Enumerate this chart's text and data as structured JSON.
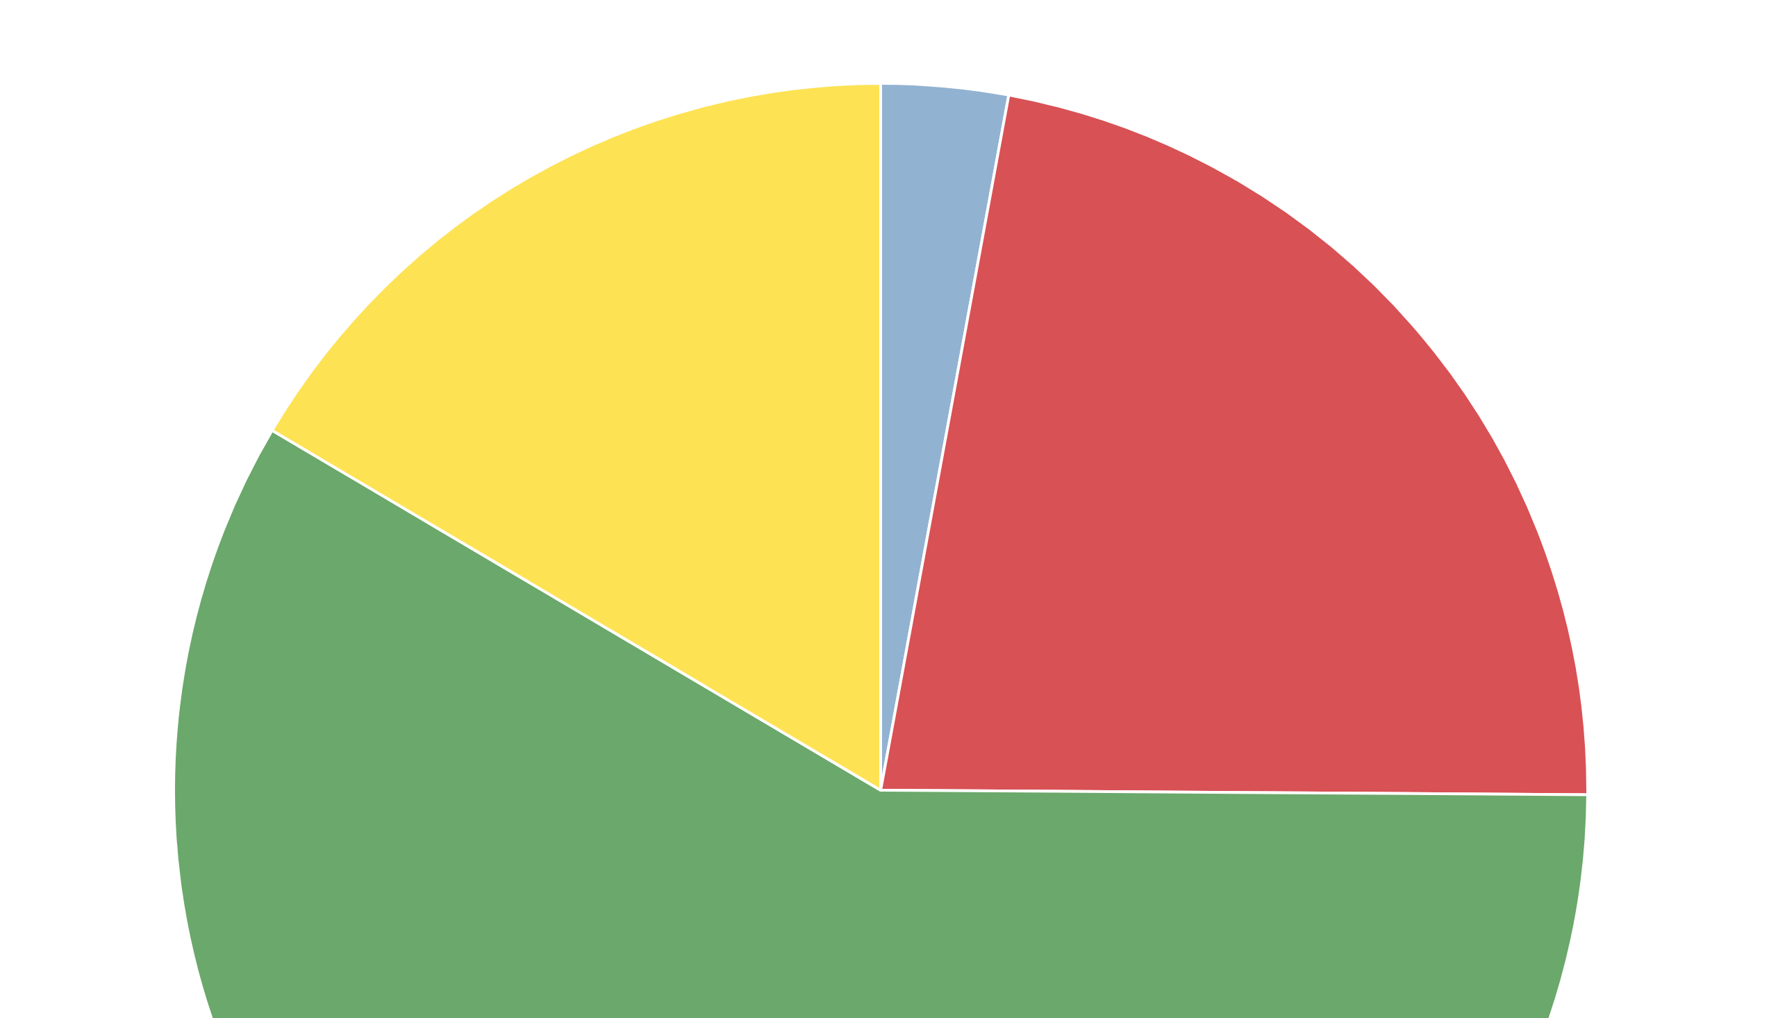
{
  "chart_data": {
    "type": "pie",
    "categories": [
      null,
      null,
      null,
      null
    ],
    "values": [
      2.9,
      22.2,
      58.4,
      16.5
    ],
    "colors": [
      "#92b2d1",
      "#d85155",
      "#6ba86b",
      "#fde254"
    ]
  }
}
